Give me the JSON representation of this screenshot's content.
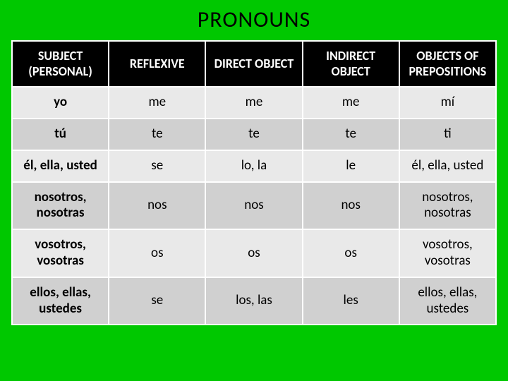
{
  "title": "PRONOUNS",
  "table": {
    "type": "table",
    "columns": [
      "SUBJECT (PERSONAL)",
      "REFLEXIVE",
      "DIRECT OBJECT",
      "INDIRECT OBJECT",
      "OBJECTS OF PREPOSITIONS"
    ],
    "rows": [
      [
        "yo",
        "me",
        "me",
        "me",
        "mí"
      ],
      [
        "tú",
        "te",
        "te",
        "te",
        "ti"
      ],
      [
        "él, ella, usted",
        "se",
        "lo, la",
        "le",
        "él, ella, usted"
      ],
      [
        "nosotros, nosotras",
        "nos",
        "nos",
        "nos",
        "nosotros, nosotras"
      ],
      [
        "vosotros, vosotras",
        "os",
        "os",
        "os",
        "vosotros, vosotras"
      ],
      [
        "ellos, ellas, ustedes",
        "se",
        "los, las",
        "les",
        "ellos, ellas, ustedes"
      ]
    ],
    "header_bg": "#000000",
    "header_fg": "#ffffff",
    "row_odd_bg": "#e9e9e9",
    "row_even_bg": "#d0d0d0",
    "border_color": "#ffffff",
    "page_bg": "#00c800",
    "title_fontsize": 32,
    "header_fontsize": 18,
    "cell_fontsize": 19
  }
}
